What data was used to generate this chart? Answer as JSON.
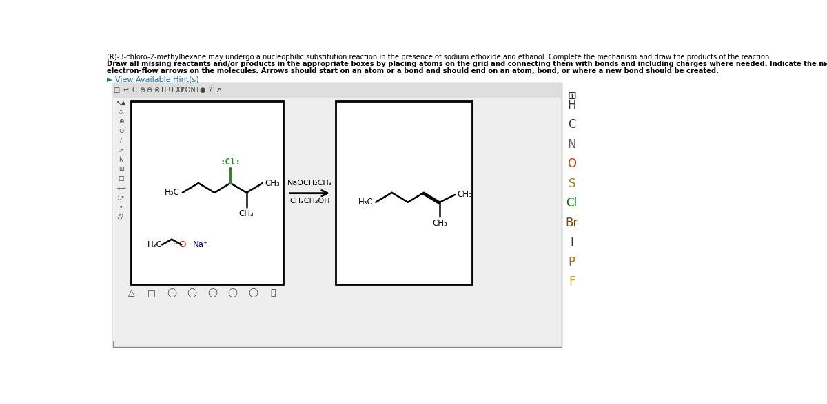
{
  "title_line1": "(R)-3-chloro-2-methylhexane may undergo a nucleophilic substitution reaction in the presence of sodium ethoxide and ethanol. Complete the mechanism and draw the products of the reaction.",
  "title_line2": "Draw all missing reactants and/or products in the appropriate boxes by placing atoms on the grid and connecting them with bonds and including charges where needed. Indicate the mechanism by drawing the",
  "title_line3": "electron-flow arrows on the molecules. Arrows should start on an atom or a bond and should end on an atom, bond, or where a new bond should be created.",
  "hint_text": "► View Available Hint(s)",
  "reagent_text1": "NaOCH₂CH₃",
  "reagent_text2": "CH₃CH₂OH",
  "side_elements": [
    "H",
    "C",
    "N",
    "O",
    "S",
    "Cl",
    "Br",
    "I",
    "P",
    "F"
  ],
  "side_colors": [
    "#333333",
    "#333333",
    "#555555",
    "#cc3300",
    "#888800",
    "#006600",
    "#884400",
    "#333333",
    "#cc6600",
    "#ccaa00"
  ],
  "bg_color": "#ffffff",
  "panel_border": "#888888",
  "panel_bg": "#eeeeee",
  "toolbar_bg": "#dddddd",
  "box_bg": "#ffffff",
  "box_border": "#000000",
  "hint_color": "#1a6fa8",
  "cl_color": "#228B22",
  "o_color": "#cc2200",
  "na_color": "#000080"
}
